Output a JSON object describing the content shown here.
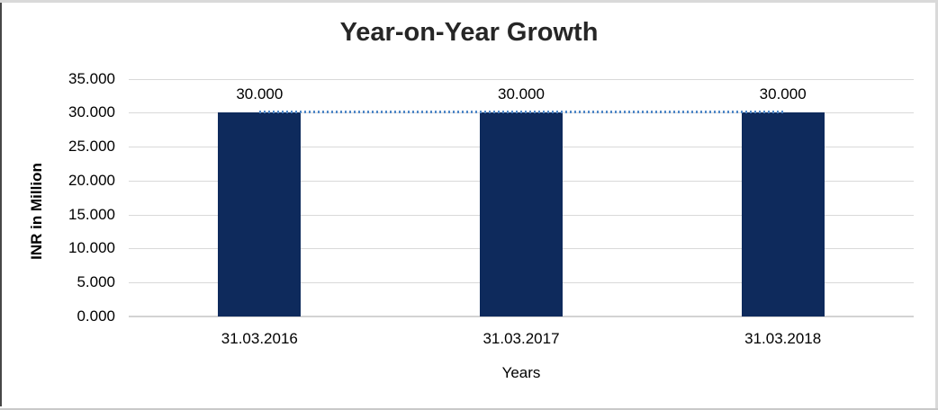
{
  "chart_data": {
    "type": "bar",
    "title": "Year-on-Year Growth",
    "xlabel": "Years",
    "ylabel": "INR in Million",
    "categories": [
      "31.03.2016",
      "31.03.2017",
      "31.03.2018"
    ],
    "series": [
      {
        "name": "INR in Million",
        "values": [
          30,
          30,
          30
        ]
      }
    ],
    "data_labels": [
      "30.000",
      "30.000",
      "30.000"
    ],
    "ytick_labels": [
      "35.000",
      "30.000",
      "25.000",
      "20.000",
      "15.000",
      "10.000",
      "5.000",
      "0.000"
    ],
    "ytick_values": [
      35,
      30,
      25,
      20,
      15,
      10,
      5,
      0
    ],
    "ylim": [
      0,
      35
    ],
    "grid": "horizontal",
    "legend_position": "none",
    "trendline": {
      "value": 30,
      "style": "dotted",
      "color": "#4f87c7"
    },
    "colors": {
      "bar": "#0e2a5c",
      "gridline": "#d9d9d9",
      "axis_line": "#d3d3d3",
      "title_text": "#262626",
      "label_text": "#000000",
      "frame_light": "#d9d9d9",
      "frame_dark": "#474747"
    }
  }
}
